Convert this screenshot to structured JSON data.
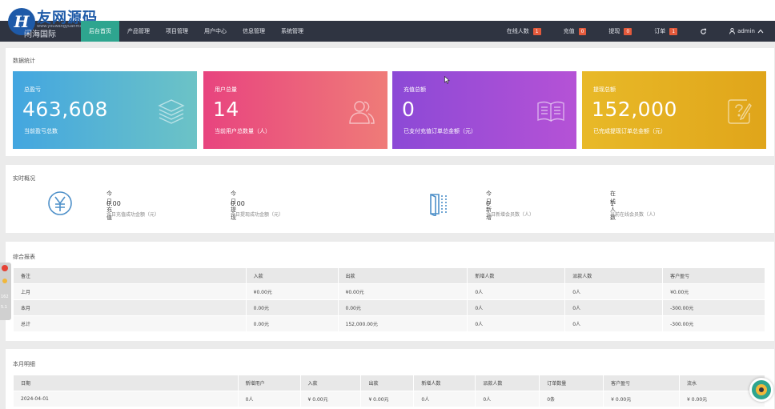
{
  "watermark": {
    "logo_letter": "H",
    "text": "友网源码",
    "sub": "www.youwangyuanma.com"
  },
  "brand": "闲海国际",
  "nav": [
    "后台首页",
    "产品管理",
    "项目管理",
    "用户中心",
    "信息管理",
    "系统管理"
  ],
  "topright": {
    "online": {
      "label": "在线人数",
      "count": "1"
    },
    "recharge": {
      "label": "充值",
      "count": "0"
    },
    "withdraw": {
      "label": "提现",
      "count": "0"
    },
    "order": {
      "label": "订单",
      "count": "1"
    },
    "user": "admin"
  },
  "data_stats": {
    "title": "数据统计",
    "cards": [
      {
        "label": "总盈亏",
        "value": "463,608",
        "desc": "当前盈亏总数",
        "color": "#43a6e0",
        "icon": "layers-icon"
      },
      {
        "label": "用户总量",
        "value": "14",
        "desc": "当前用户总数量（人）",
        "color": "#e8447f",
        "icon": "users-icon"
      },
      {
        "label": "充值总额",
        "value": "0",
        "desc": "已支付充值订单总金额（元）",
        "color": "#8c49d6",
        "icon": "book-icon"
      },
      {
        "label": "提现总额",
        "value": "152,000",
        "desc": "已完成提现订单总金额（元）",
        "color": "#e8b928",
        "icon": "edit-icon"
      }
    ]
  },
  "realtime": {
    "title": "实时概况",
    "items": [
      {
        "label": "今日充值",
        "value": "0.00",
        "desc": "今日充值成功金额（元）"
      },
      {
        "label": "今日提现",
        "value": "0.00",
        "desc": "今日提现成功金额（元）"
      },
      {
        "label": "今日新增",
        "value": "0",
        "desc": "今日新增会员数（人）"
      },
      {
        "label": "在线人数",
        "value": "1",
        "desc": "当前在线会员数（人）"
      }
    ]
  },
  "report": {
    "title": "综合报表",
    "headers": [
      "备注",
      "入款",
      "出款",
      "新增人数",
      "派款人数",
      "客户盈亏"
    ],
    "rows": [
      [
        "上月",
        "¥0.00元",
        "¥0.00元",
        "0人",
        "0人",
        "¥0.00元"
      ],
      [
        "本月",
        "0.00元",
        "0.00元",
        "0人",
        "0人",
        "-300.00元"
      ],
      [
        "总计",
        "0.00元",
        "152,000.00元",
        "0人",
        "0人",
        "-300.00元"
      ]
    ]
  },
  "monthly": {
    "title": "本月明细",
    "headers": [
      "日期",
      "新增用户",
      "入款",
      "出款",
      "新增人数",
      "派款人数",
      "订单数量",
      "客户盈亏",
      "流水"
    ],
    "rows": [
      [
        "2024-04-01",
        "0人",
        "¥ 0.00元",
        "¥ 0.00元",
        "0人",
        "0人",
        "0条",
        "¥ 0.00元",
        "¥ 0.00元"
      ]
    ]
  },
  "side_widget": {
    "value1": "162",
    "value2": "5.1"
  }
}
